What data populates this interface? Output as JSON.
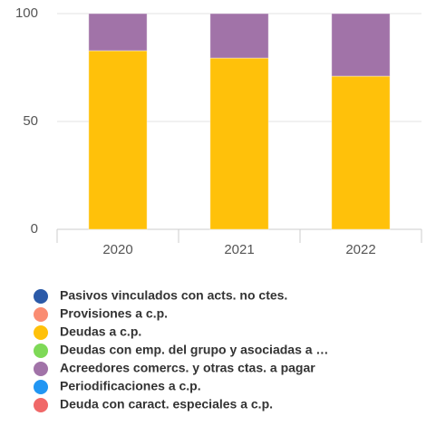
{
  "chart_data": {
    "type": "bar",
    "stacked": true,
    "categories": [
      "2020",
      "2021",
      "2022"
    ],
    "series": [
      {
        "name": "Pasivos vinculados con acts. no ctes.",
        "color": "#2b5aa8",
        "values": [
          0,
          0,
          0
        ]
      },
      {
        "name": "Provisiones a c.p.",
        "color": "#fa8c72",
        "values": [
          0,
          0,
          0
        ]
      },
      {
        "name": "Deudas a c.p.",
        "color": "#ffc10a",
        "values": [
          82.8,
          79.4,
          71
        ]
      },
      {
        "name": "Deudas con emp. del grupo y asociadas a …",
        "color": "#7ed957",
        "values": [
          0,
          0,
          0
        ]
      },
      {
        "name": "Acreedores comercs. y otras ctas. a pagar",
        "color": "#a173a8",
        "values": [
          17.2,
          20.6,
          29
        ]
      },
      {
        "name": "Periodificaciones a c.p.",
        "color": "#2196f3",
        "values": [
          0,
          0,
          0
        ]
      },
      {
        "name": "Deuda con caract. especiales a c.p.",
        "color": "#f06868",
        "values": [
          0,
          0,
          0
        ]
      }
    ],
    "ylim": [
      0,
      100
    ],
    "yticks": [
      0,
      50,
      100
    ],
    "grid": true,
    "legend": "bottom"
  }
}
